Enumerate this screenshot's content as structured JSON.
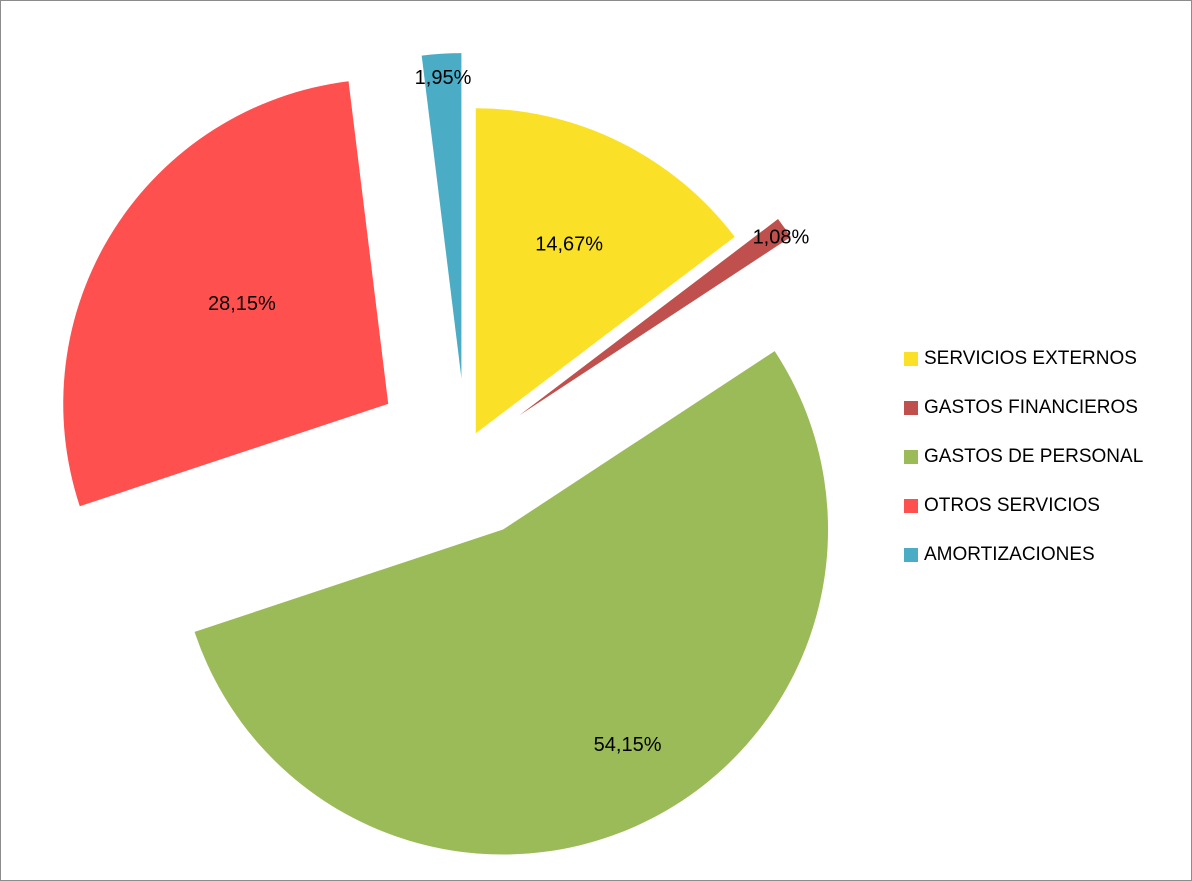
{
  "chart_data": {
    "type": "pie",
    "title": "",
    "legend_position": "right",
    "slices": [
      {
        "name": "SERVICIOS EXTERNOS",
        "value": 14.67,
        "label": "14,67%",
        "color": "#FAE128",
        "exploded": true
      },
      {
        "name": "GASTOS FINANCIEROS",
        "value": 1.08,
        "label": "1,08%",
        "color": "#C0504D",
        "exploded": true
      },
      {
        "name": "GASTOS DE PERSONAL",
        "value": 54.15,
        "label": "54,15%",
        "color": "#9BBB59",
        "exploded": true
      },
      {
        "name": "OTROS SERVICIOS",
        "value": 28.15,
        "label": "28,15%",
        "color": "#FF5050",
        "exploded": true
      },
      {
        "name": "AMORTIZACIONES",
        "value": 1.95,
        "label": "1,95%",
        "color": "#4BACC6",
        "exploded": true
      }
    ]
  }
}
